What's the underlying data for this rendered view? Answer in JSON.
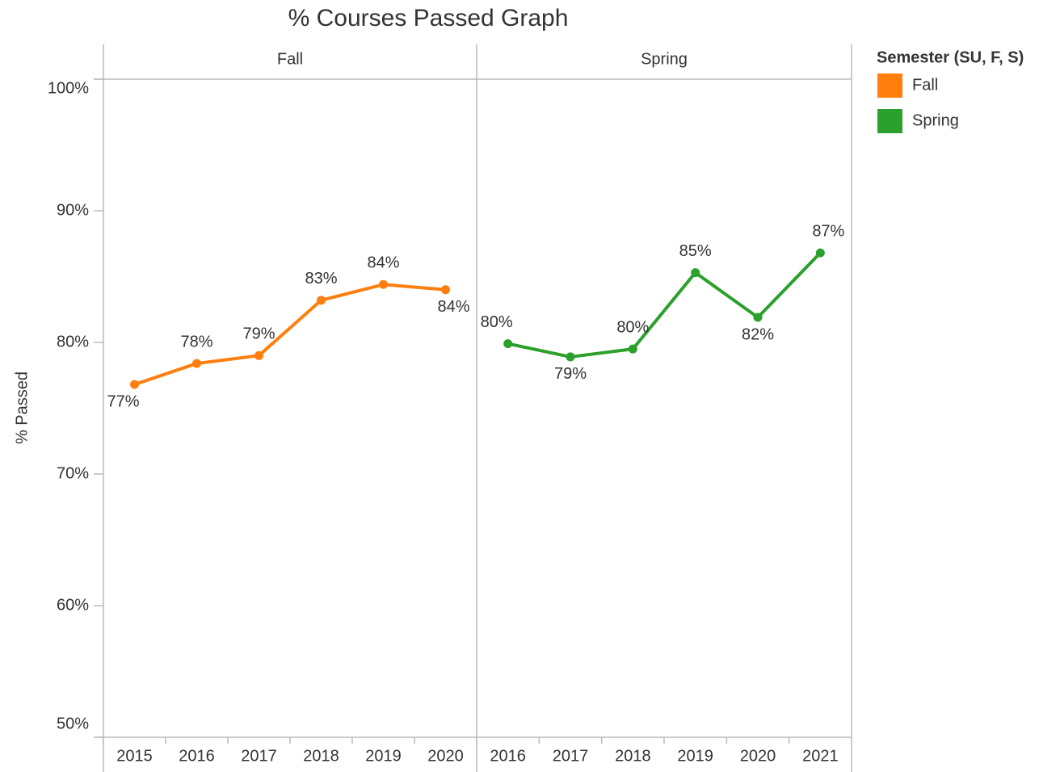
{
  "chart_data": {
    "type": "line",
    "title": "% Courses Passed Graph",
    "y_label": "% Passed",
    "legend_title": "Semester (SU, F, S)",
    "legend_position": "right",
    "ylim": [
      50,
      100
    ],
    "yticks": [
      {
        "value": 50,
        "label": "50%"
      },
      {
        "value": 60,
        "label": "60%"
      },
      {
        "value": 70,
        "label": "70%"
      },
      {
        "value": 80,
        "label": "80%"
      },
      {
        "value": 90,
        "label": "90%"
      },
      {
        "value": 100,
        "label": "100%"
      }
    ],
    "series": [
      {
        "name": "Fall",
        "color": "#ff7f0e",
        "categories": [
          "2015",
          "2016",
          "2017",
          "2018",
          "2019",
          "2020"
        ],
        "values": [
          76.8,
          78.4,
          79.0,
          83.2,
          84.4,
          84.0
        ],
        "value_labels": [
          "77%",
          "78%",
          "79%",
          "83%",
          "84%",
          "84%"
        ]
      },
      {
        "name": "Spring",
        "color": "#2ca02c",
        "categories": [
          "2016",
          "2017",
          "2018",
          "2019",
          "2020",
          "2021"
        ],
        "values": [
          79.9,
          78.9,
          79.5,
          85.3,
          81.9,
          86.8
        ],
        "value_labels": [
          "80%",
          "79%",
          "80%",
          "85%",
          "82%",
          "87%"
        ]
      }
    ]
  }
}
